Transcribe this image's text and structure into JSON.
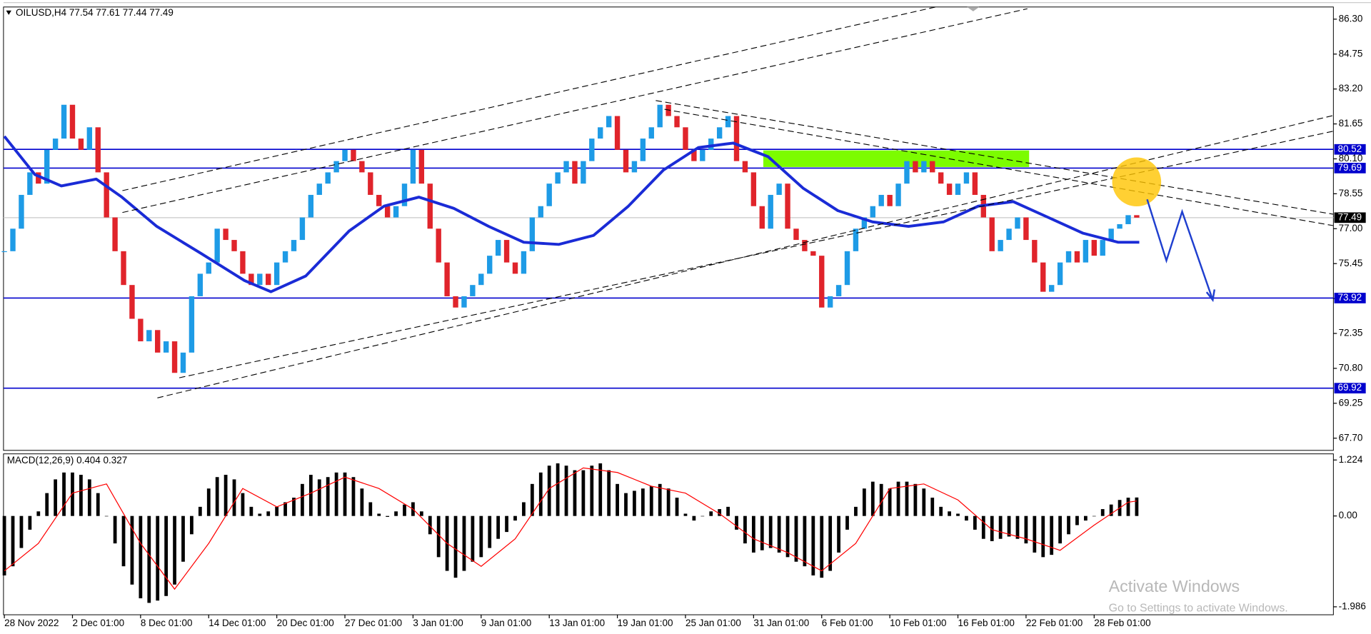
{
  "chart_data": [
    {
      "type": "candlestick",
      "title": "OILUSD,H4  77.54 77.61 77.44 77.49",
      "up_color": "#1e9be6",
      "down_color": "#e0242b",
      "xlim": [
        -0.1,
        156.1
      ],
      "ylim": [
        67.16,
        86.84
      ],
      "yticks": [
        {
          "value": 86.3,
          "label": "86.30"
        },
        84.75,
        {
          "value": 83.2,
          "label": "83.20"
        },
        81.65,
        {
          "value": 80.1,
          "label": "80.10"
        },
        78.55,
        {
          "value": 77,
          "label": "77.00"
        },
        75.45,
        {
          "value": 73.9,
          "label": "73.90"
        },
        72.35,
        {
          "value": 70.8,
          "label": "70.80"
        },
        69.25,
        {
          "value": 67.7,
          "label": "67.70"
        }
      ],
      "close": [
        76,
        77,
        78.5,
        79.5,
        79,
        80.5,
        81,
        82.5,
        81,
        80.5,
        81.5,
        79.5,
        77.5,
        76,
        74.5,
        73,
        72,
        72.5,
        71.5,
        72,
        70.6,
        71.5,
        74,
        75,
        75.5,
        77,
        76.5,
        76,
        75,
        74.5,
        75,
        74.5,
        75.5,
        76,
        76.5,
        77.5,
        78.5,
        79,
        79.5,
        80,
        80.5,
        80,
        79.5,
        78.5,
        78,
        77.5,
        78,
        79,
        80.5,
        79,
        77,
        75.5,
        74,
        73.5,
        74,
        74.5,
        75,
        75.8,
        76.5,
        75.5,
        75,
        76,
        77.5,
        78,
        79,
        79.5,
        80,
        79,
        80,
        81,
        81.5,
        82,
        80.5,
        79.5,
        80,
        81,
        81.5,
        82.5,
        82,
        81.5,
        80.5,
        80,
        80.5,
        81,
        81.5,
        82,
        80,
        79.5,
        78,
        77,
        78.5,
        79,
        77,
        76.5,
        76,
        75.8,
        73.5,
        74,
        74.5,
        76,
        77,
        77.5,
        78,
        78.5,
        78,
        79,
        80,
        79.5,
        80,
        79.5,
        79,
        78.5,
        79,
        79.5,
        78.5,
        77.5,
        76,
        76.5,
        77,
        77.5,
        76.5,
        75.5,
        74.2,
        74.5,
        75.5,
        76,
        75.5,
        76.5,
        75.8,
        76.5,
        77,
        77.2,
        77.6,
        77.49
      ],
      "ma": {
        "color": "#1a2bd6",
        "x": [
          0,
          3.6,
          6.7,
          10.8,
          13.8,
          17.9,
          23.1,
          28.2,
          31.3,
          35.4,
          40.5,
          44.6,
          48.7,
          52.8,
          56.9,
          61,
          65.1,
          69.2,
          73.3,
          77.4,
          81.5,
          85.6,
          89.7,
          93.8,
          97.9,
          102,
          106.2,
          110.3,
          114.4,
          118.5,
          122.6,
          126.7,
          130.8,
          133.3
        ],
        "values": [
          81.1,
          79.4,
          78.9,
          79.2,
          78.4,
          77.1,
          75.9,
          74.7,
          74.2,
          74.9,
          76.9,
          78.0,
          78.4,
          77.9,
          77.1,
          76.4,
          76.3,
          76.7,
          78.0,
          79.6,
          80.6,
          80.8,
          80.2,
          78.8,
          77.8,
          77.3,
          77.1,
          77.3,
          78.0,
          78.2,
          77.5,
          76.8,
          76.4,
          76.4
        ]
      },
      "levels": [
        {
          "value": 80.52,
          "color": "#0000cd"
        },
        {
          "value": 79.69,
          "color": "#0000cd"
        },
        {
          "value": 73.92,
          "color": "#0000cd"
        },
        {
          "value": 69.92,
          "color": "#0000cd"
        }
      ],
      "last_price": 77.49
    },
    {
      "type": "bar",
      "title": "MACD(12,26,9) 0.404 0.327",
      "color": "#000000",
      "xlim": [
        -0.1,
        156.1
      ],
      "ylim": [
        -2.16,
        1.358
      ],
      "yticks": [
        1.224,
        {
          "value": 0,
          "label": "0.00"
        },
        -1.986
      ],
      "xticks": [
        {
          "value": 0,
          "label": "28 Nov 2022"
        },
        {
          "value": 8,
          "label": "2 Dec 01:00"
        },
        {
          "value": 16,
          "label": "8 Dec 01:00"
        },
        {
          "value": 24,
          "label": "14 Dec 01:00"
        },
        {
          "value": 32,
          "label": "20 Dec 01:00"
        },
        {
          "value": 40,
          "label": "27 Dec 01:00"
        },
        {
          "value": 48,
          "label": "3 Jan 01:00"
        },
        {
          "value": 56,
          "label": "9 Jan 01:00"
        },
        {
          "value": 64,
          "label": "13 Jan 01:00"
        },
        {
          "value": 72,
          "label": "19 Jan 01:00"
        },
        {
          "value": 80,
          "label": "25 Jan 01:00"
        },
        {
          "value": 88,
          "label": "31 Jan 01:00"
        },
        {
          "value": 96,
          "label": "6 Feb 01:00"
        },
        {
          "value": 104,
          "label": "10 Feb 01:00"
        },
        {
          "value": 112,
          "label": "16 Feb 01:00"
        },
        {
          "value": 120,
          "label": "22 Feb 01:00"
        },
        {
          "value": 128,
          "label": "28 Feb 01:00"
        }
      ],
      "values": [
        -1.3,
        -1.1,
        -0.7,
        -0.3,
        0.1,
        0.5,
        0.8,
        0.95,
        0.95,
        0.9,
        0.8,
        0.5,
        0,
        -0.6,
        -1.1,
        -1.5,
        -1.8,
        -1.9,
        -1.85,
        -1.75,
        -1.5,
        -1,
        -0.4,
        0.2,
        0.6,
        0.85,
        0.9,
        0.8,
        0.5,
        0.2,
        0.05,
        0.1,
        0.2,
        0.3,
        0.4,
        0.7,
        0.9,
        0.8,
        0.85,
        0.95,
        0.95,
        0.85,
        0.6,
        0.3,
        0.05,
        -0.02,
        0.1,
        0.25,
        0.3,
        0.1,
        -0.4,
        -0.9,
        -1.2,
        -1.35,
        -1.2,
        -1,
        -0.9,
        -0.7,
        -0.5,
        -0.35,
        -0.1,
        0.3,
        0.7,
        0.95,
        1.1,
        1.15,
        1.1,
        1,
        1,
        1.1,
        1.15,
        1,
        0.7,
        0.5,
        0.55,
        0.6,
        0.65,
        0.7,
        0.6,
        0.4,
        0.05,
        -0.1,
        0,
        0.1,
        0.15,
        0.2,
        -0.3,
        -0.6,
        -0.8,
        -0.75,
        -0.7,
        -0.8,
        -0.9,
        -1,
        -1.1,
        -1.3,
        -1.35,
        -1.2,
        -0.8,
        -0.3,
        0.2,
        0.6,
        0.75,
        0.7,
        0.6,
        0.75,
        0.75,
        0.7,
        0.6,
        0.4,
        0.2,
        0.1,
        0.05,
        -0.1,
        -0.3,
        -0.5,
        -0.55,
        -0.5,
        -0.45,
        -0.5,
        -0.6,
        -0.8,
        -0.9,
        -0.85,
        -0.6,
        -0.4,
        -0.2,
        -0.1,
        0,
        0.15,
        0.25,
        0.35,
        0.4,
        0.404
      ],
      "signal": {
        "color": "#ff0000",
        "x": [
          0,
          4,
          8,
          12,
          16,
          20,
          24,
          28,
          32,
          36,
          40,
          44,
          48,
          52,
          56,
          60,
          64,
          68,
          72,
          76,
          80,
          84,
          88,
          92,
          96,
          100,
          104,
          108,
          112,
          116,
          120,
          124,
          128,
          132,
          133
        ],
        "values": [
          -1.2,
          -0.6,
          0.5,
          0.7,
          -0.6,
          -1.6,
          -0.6,
          0.6,
          0.2,
          0.5,
          0.85,
          0.6,
          0.15,
          -0.6,
          -1.1,
          -0.5,
          0.6,
          1.05,
          0.95,
          0.65,
          0.5,
          0.05,
          -0.5,
          -0.8,
          -1.2,
          -0.6,
          0.6,
          0.7,
          0.35,
          -0.3,
          -0.5,
          -0.75,
          -0.2,
          0.3,
          0.327
        ]
      }
    }
  ],
  "watermark": {
    "title": "Activate Windows",
    "subtitle": "Go to Settings to activate Windows."
  }
}
